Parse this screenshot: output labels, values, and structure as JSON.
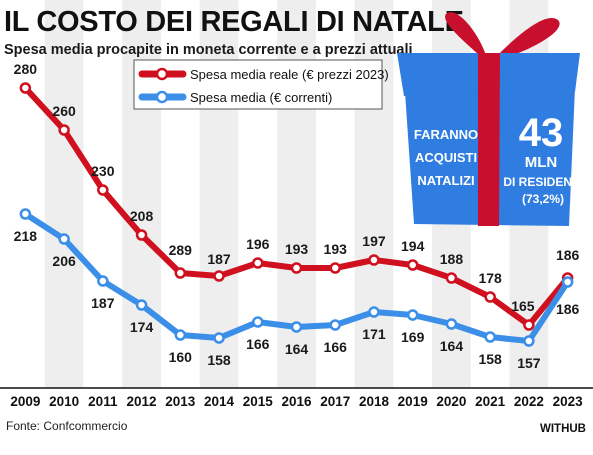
{
  "chart_data": {
    "type": "line",
    "title": "IL COSTO DEI REGALI DI NATALE",
    "subtitle": "Spesa media procapite in moneta corrente e a prezzi attuali",
    "x": [
      "2009",
      "2010",
      "2011",
      "2012",
      "2013",
      "2014",
      "2015",
      "2016",
      "2017",
      "2018",
      "2019",
      "2020",
      "2021",
      "2022",
      "2023"
    ],
    "series": [
      {
        "name": "Spesa media reale (€ prezzi 2023)",
        "color": "#d0101e",
        "values": [
          280,
          260,
          230,
          208,
          289,
          187,
          196,
          193,
          193,
          197,
          194,
          188,
          178,
          165,
          186
        ],
        "labels": [
          "280",
          "260",
          "230",
          "208",
          "289",
          "187",
          "196",
          "193",
          "193",
          "197",
          "194",
          "188",
          "178",
          "165",
          "186"
        ]
      },
      {
        "name": "Spesa media (€ correnti)",
        "color": "#3b8fe8",
        "values": [
          218,
          206,
          187,
          174,
          160,
          158,
          166,
          164,
          166,
          171,
          169,
          164,
          158,
          157,
          186
        ],
        "labels": [
          "218",
          "206",
          "187",
          "174",
          "160",
          "158",
          "166",
          "164",
          "166",
          "171",
          "169",
          "164",
          "158",
          "157",
          "186"
        ]
      }
    ],
    "legend_position": "top-left",
    "grid": false
  },
  "callout": {
    "left_lines": [
      "FARANNO",
      "ACQUISTI",
      "NATALIZI"
    ],
    "big_number": "43",
    "unit": "MLN",
    "note": "DI RESIDENTI",
    "percent": "(73,2%)",
    "box_color": "#2f7de0",
    "ribbon_color": "#c8102e"
  },
  "footer": {
    "source": "Fonte: Confcommercio",
    "brand": "WITHUB"
  }
}
